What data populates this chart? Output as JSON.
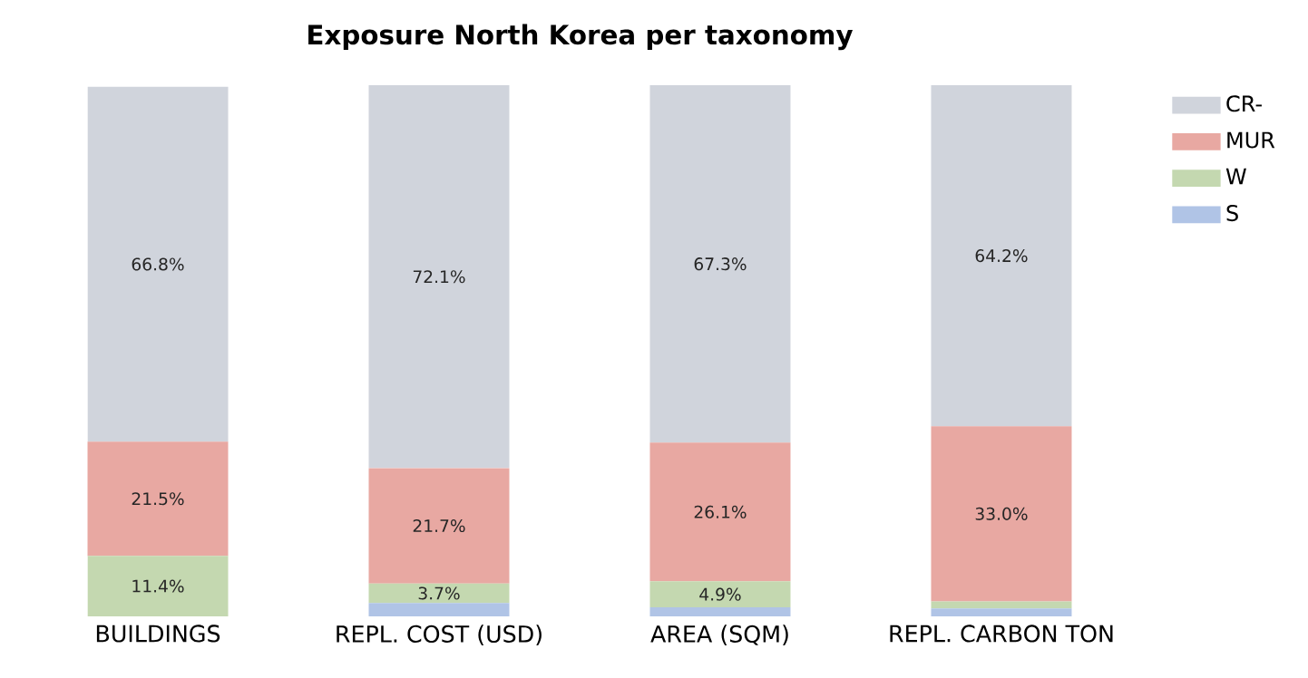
{
  "chart_data": {
    "type": "bar",
    "title": "Exposure North Korea per taxonomy",
    "stacked": true,
    "legend": "top right",
    "categories": [
      "BUILDINGS",
      "REPL. COST (USD)",
      "AREA (SQM)",
      "REPL. CARBON TON"
    ],
    "tick_labels": "x",
    "series": [
      {
        "name": "S",
        "color": "#b0c4e6",
        "values": [
          null,
          2.5,
          1.7,
          1.5
        ],
        "value_labels": [
          null,
          null,
          null,
          null
        ]
      },
      {
        "name": "W",
        "color": "#c4d8b0",
        "values": [
          11.4,
          3.7,
          4.9,
          1.3
        ],
        "value_labels": [
          "11.4%",
          "3.7%",
          "4.9%",
          null
        ]
      },
      {
        "name": "MUR",
        "color": "#e8a8a2",
        "values": [
          21.5,
          21.7,
          26.1,
          33.0
        ],
        "value_labels": [
          "21.5%",
          "21.7%",
          "26.1%",
          "33.0%"
        ]
      },
      {
        "name": "CR-",
        "color": "#d0d4dc",
        "values": [
          66.8,
          72.1,
          67.3,
          64.2
        ],
        "value_labels": [
          "66.8%",
          "72.1%",
          "67.3%",
          "64.2%"
        ]
      }
    ]
  }
}
